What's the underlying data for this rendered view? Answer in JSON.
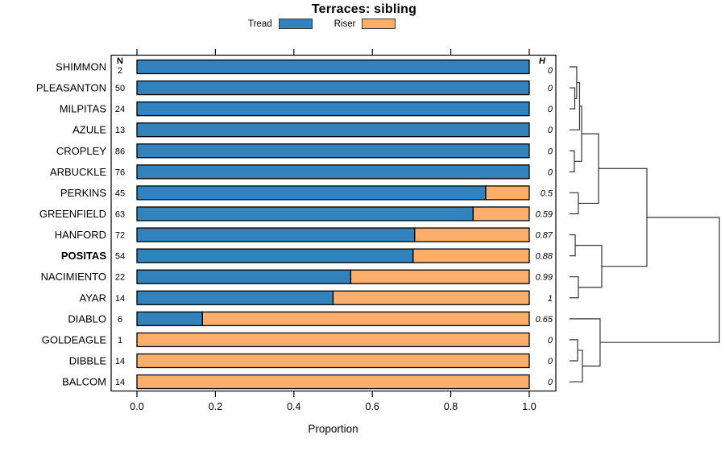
{
  "title": "Terraces: sibling",
  "legend": [
    {
      "label": "Tread",
      "color": "#3182BD"
    },
    {
      "label": "Riser",
      "color": "#FDAE6B"
    }
  ],
  "columns": {
    "n_header": "N",
    "h_header": "H"
  },
  "chart_data": {
    "type": "bar",
    "stacked": true,
    "orientation": "horizontal",
    "title": "Terraces: sibling",
    "xlabel": "Proportion",
    "xlim": [
      0,
      1
    ],
    "xticks": [
      "0.0",
      "0.2",
      "0.4",
      "0.6",
      "0.8",
      "1.0"
    ],
    "categories": [
      "SHIMMON",
      "PLEASANTON",
      "MILPITAS",
      "AZULE",
      "CROPLEY",
      "ARBUCKLE",
      "PERKINS",
      "GREENFIELD",
      "HANFORD",
      "POSITAS",
      "NACIMIENTO",
      "AYAR",
      "DIABLO",
      "GOLDEAGLE",
      "DIBBLE",
      "BALCOM"
    ],
    "bold_category": "POSITAS",
    "series": [
      {
        "name": "Tread",
        "color": "#3182BD",
        "values": [
          1,
          1,
          1,
          1,
          1,
          1,
          0.889,
          0.857,
          0.708,
          0.704,
          0.545,
          0.5,
          0.167,
          0,
          0,
          0
        ]
      },
      {
        "name": "Riser",
        "color": "#FDAE6B",
        "values": [
          0,
          0,
          0,
          0,
          0,
          0,
          0.111,
          0.143,
          0.292,
          0.296,
          0.455,
          0.5,
          0.833,
          1,
          1,
          1
        ]
      }
    ],
    "n_values": [
      2,
      50,
      24,
      13,
      86,
      76,
      45,
      63,
      72,
      54,
      22,
      14,
      6,
      1,
      14,
      14
    ],
    "h_values": [
      "0",
      "0",
      "0",
      "0",
      "0",
      "0",
      "0.5",
      "0.59",
      "0.87",
      "0.88",
      "0.99",
      "1",
      "0.65",
      "0",
      "0",
      "0"
    ]
  },
  "dendrogram": {
    "leaf_order": [
      "SHIMMON",
      "PLEASANTON",
      "MILPITAS",
      "AZULE",
      "CROPLEY",
      "ARBUCKLE",
      "PERKINS",
      "GREENFIELD",
      "HANFORD",
      "POSITAS",
      "NACIMIENTO",
      "AYAR",
      "DIABLO",
      "GOLDEAGLE",
      "DIBBLE",
      "BALCOM"
    ],
    "nodes": [
      {
        "id": "n1",
        "children": [
          "L1",
          "L2"
        ],
        "h": 0.035
      },
      {
        "id": "n2",
        "children": [
          "L0",
          "n1"
        ],
        "h": 0.048
      },
      {
        "id": "n3",
        "children": [
          "n2",
          "L3"
        ],
        "h": 0.067
      },
      {
        "id": "n4",
        "children": [
          "L4",
          "L5"
        ],
        "h": 0.032
      },
      {
        "id": "n5",
        "children": [
          "n3",
          "n4"
        ],
        "h": 0.081
      },
      {
        "id": "n6",
        "children": [
          "L6",
          "L7"
        ],
        "h": 0.059
      },
      {
        "id": "n7",
        "children": [
          "n5",
          "n6"
        ],
        "h": 0.194
      },
      {
        "id": "n8",
        "children": [
          "L8",
          "L9"
        ],
        "h": 0.038
      },
      {
        "id": "n9",
        "children": [
          "L10",
          "L11"
        ],
        "h": 0.059
      },
      {
        "id": "n10",
        "children": [
          "n8",
          "n9"
        ],
        "h": 0.215
      },
      {
        "id": "n11",
        "children": [
          "n7",
          "n10"
        ],
        "h": 0.516
      },
      {
        "id": "n12",
        "children": [
          "L13",
          "L14"
        ],
        "h": 0.054
      },
      {
        "id": "n13",
        "children": [
          "n12",
          "L15"
        ],
        "h": 0.086
      },
      {
        "id": "n14",
        "children": [
          "L12",
          "n13"
        ],
        "h": 0.204
      },
      {
        "id": "n15",
        "children": [
          "n11",
          "n14"
        ],
        "h": 1.0
      }
    ]
  }
}
